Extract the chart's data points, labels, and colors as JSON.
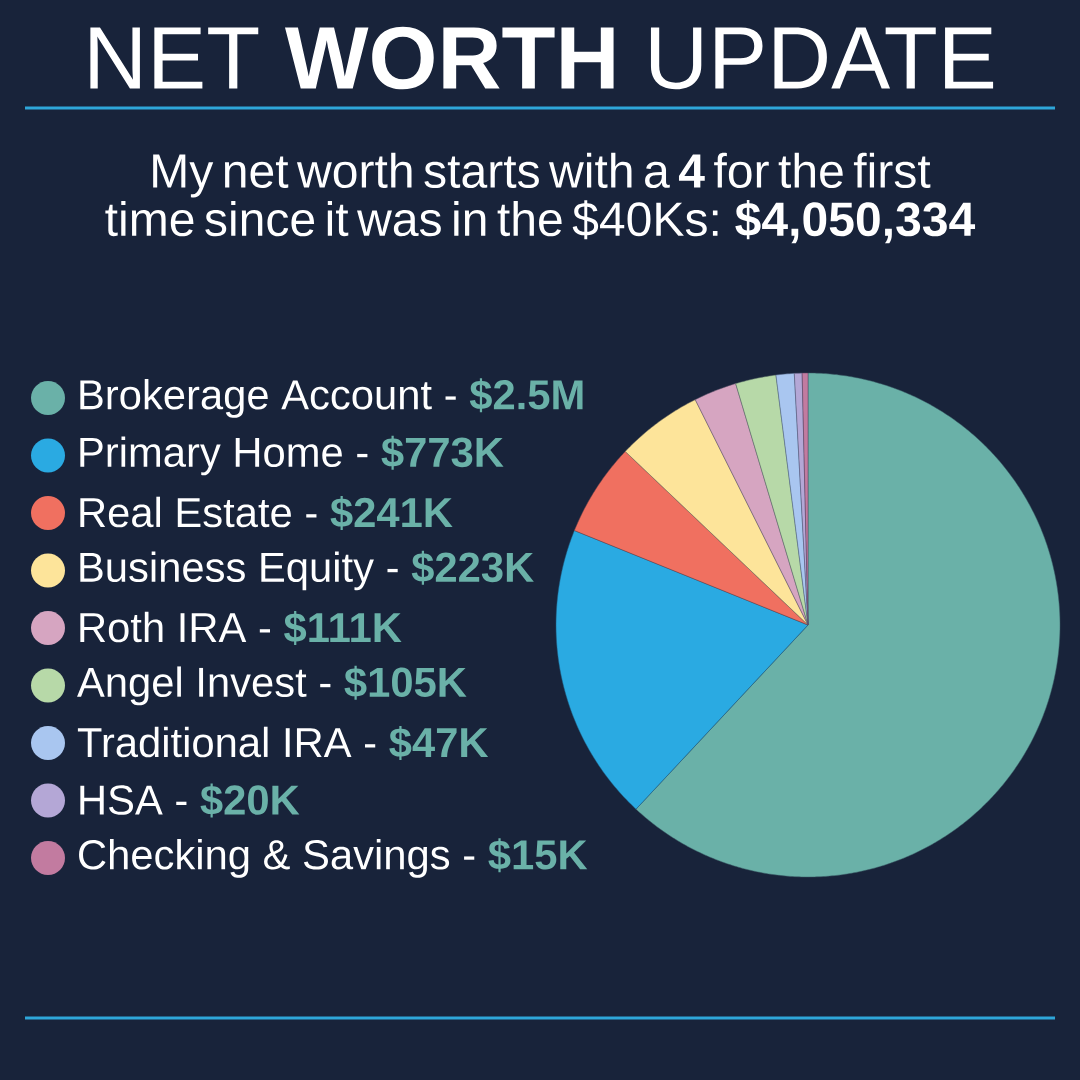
{
  "chart_data": {
    "type": "pie",
    "title": "NET **WORTH** UPDATE",
    "subtitle": "My net worth starts with a **4** for the first time since it was in the $40Ks: **$4,050,334**",
    "categories": [
      "Brokerage Account -",
      "Primary Home -",
      "Real Estate -",
      "Business Equity -",
      "Roth IRA -",
      "Angel Invest -",
      "Traditional IRA -",
      "HSA -",
      "Checking & Savings -"
    ],
    "values": [
      2500000,
      773000,
      241000,
      223000,
      111000,
      105000,
      47000,
      20000,
      15000
    ],
    "value_labels": [
      "$2.5M",
      "$773K",
      "$241K",
      "$223K",
      "$111K",
      "$105K",
      "$47K",
      "$20K",
      "$15K"
    ],
    "colors": [
      "#6ab1a8",
      "#2aaae2",
      "#f07060",
      "#fde49a",
      "#d6a5c1",
      "#b7d9a8",
      "#a9c6f0",
      "#b4a7d6",
      "#c27ba0"
    ],
    "legend": "left"
  }
}
